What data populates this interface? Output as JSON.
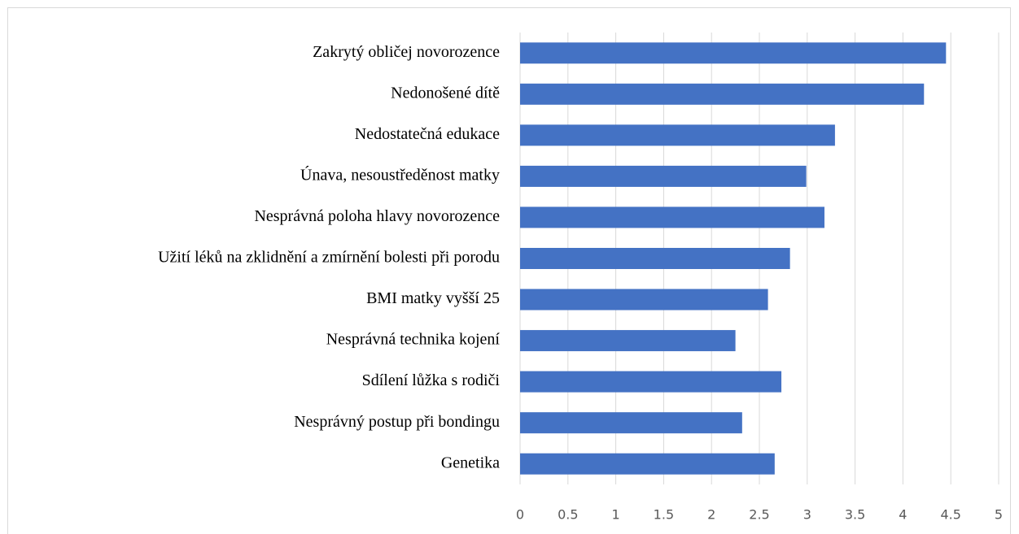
{
  "chart_data": {
    "type": "bar",
    "orientation": "horizontal",
    "categories": [
      "Zakrytý obličej novorozence",
      "Nedonošené dítě",
      "Nedostatečná edukace",
      "Únava, nesoustředěnost matky",
      "Nesprávná poloha hlavy novorozence",
      "Užití léků na zklidnění a zmírnění bolesti při porodu",
      "BMI matky vyšší 25",
      "Nesprávná technika kojení",
      "Sdílení lůžka s rodiči",
      "Nesprávný postup při bondingu",
      "Genetika"
    ],
    "values": [
      4.45,
      4.22,
      3.29,
      2.99,
      3.18,
      2.82,
      2.59,
      2.25,
      2.73,
      2.32,
      2.66
    ],
    "color": "#4472c4",
    "xlim": [
      0,
      5
    ],
    "xticks": [
      0,
      0.5,
      1,
      1.5,
      2,
      2.5,
      3,
      3.5,
      4,
      4.5,
      5
    ],
    "grid": true
  }
}
